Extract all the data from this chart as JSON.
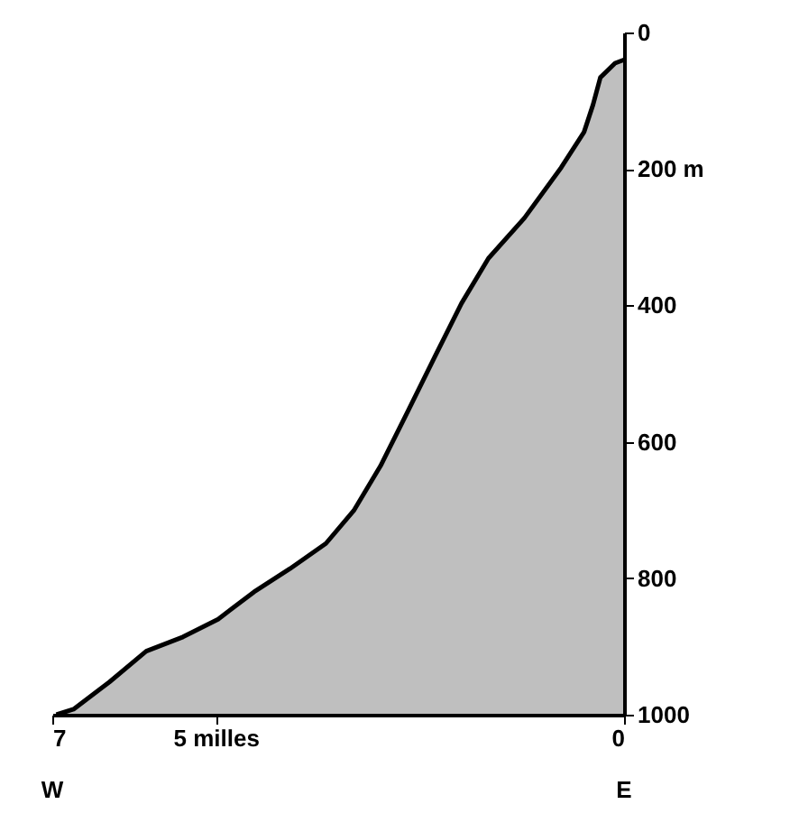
{
  "chart_data": {
    "type": "line",
    "x": [
      6.95,
      6.74,
      6.3,
      5.85,
      5.4,
      4.97,
      4.53,
      4.09,
      3.65,
      3.31,
      2.98,
      2.65,
      2.32,
      1.99,
      1.66,
      1.22,
      0.77,
      0.49,
      0.38,
      0.29,
      0.11,
      0
    ],
    "series": [
      {
        "color": "#000000",
        "values": [
          1000,
          992,
          952,
          907,
          886,
          860,
          820,
          786,
          749,
          701,
          635,
          556,
          476,
          397,
          331,
          272,
          198,
          146,
          106,
          66,
          45,
          40
        ],
        "lower": [
          1000,
          992,
          952,
          907,
          886,
          860,
          820,
          786,
          749,
          701,
          635,
          556,
          476,
          397,
          331,
          272,
          198,
          146,
          106,
          66,
          45,
          40
        ],
        "upper": [
          1000,
          1000,
          1000,
          1000,
          1000,
          1000,
          1000,
          1000,
          1000,
          1000,
          1000,
          1000,
          1000,
          1000,
          1000,
          1000,
          1000,
          1000,
          1000,
          1000,
          1000,
          1000
        ]
      }
    ],
    "xlim": [
      7,
      0
    ],
    "xticks": [
      7,
      {
        "value": 5,
        "label": "5 milles"
      },
      0
    ],
    "ylim": [
      1000,
      0
    ],
    "yticks": [
      0,
      {
        "value": 200,
        "label": "200 m"
      },
      400,
      600,
      800,
      1000
    ],
    "annotations": [
      "W",
      "E"
    ],
    "grid": false
  }
}
